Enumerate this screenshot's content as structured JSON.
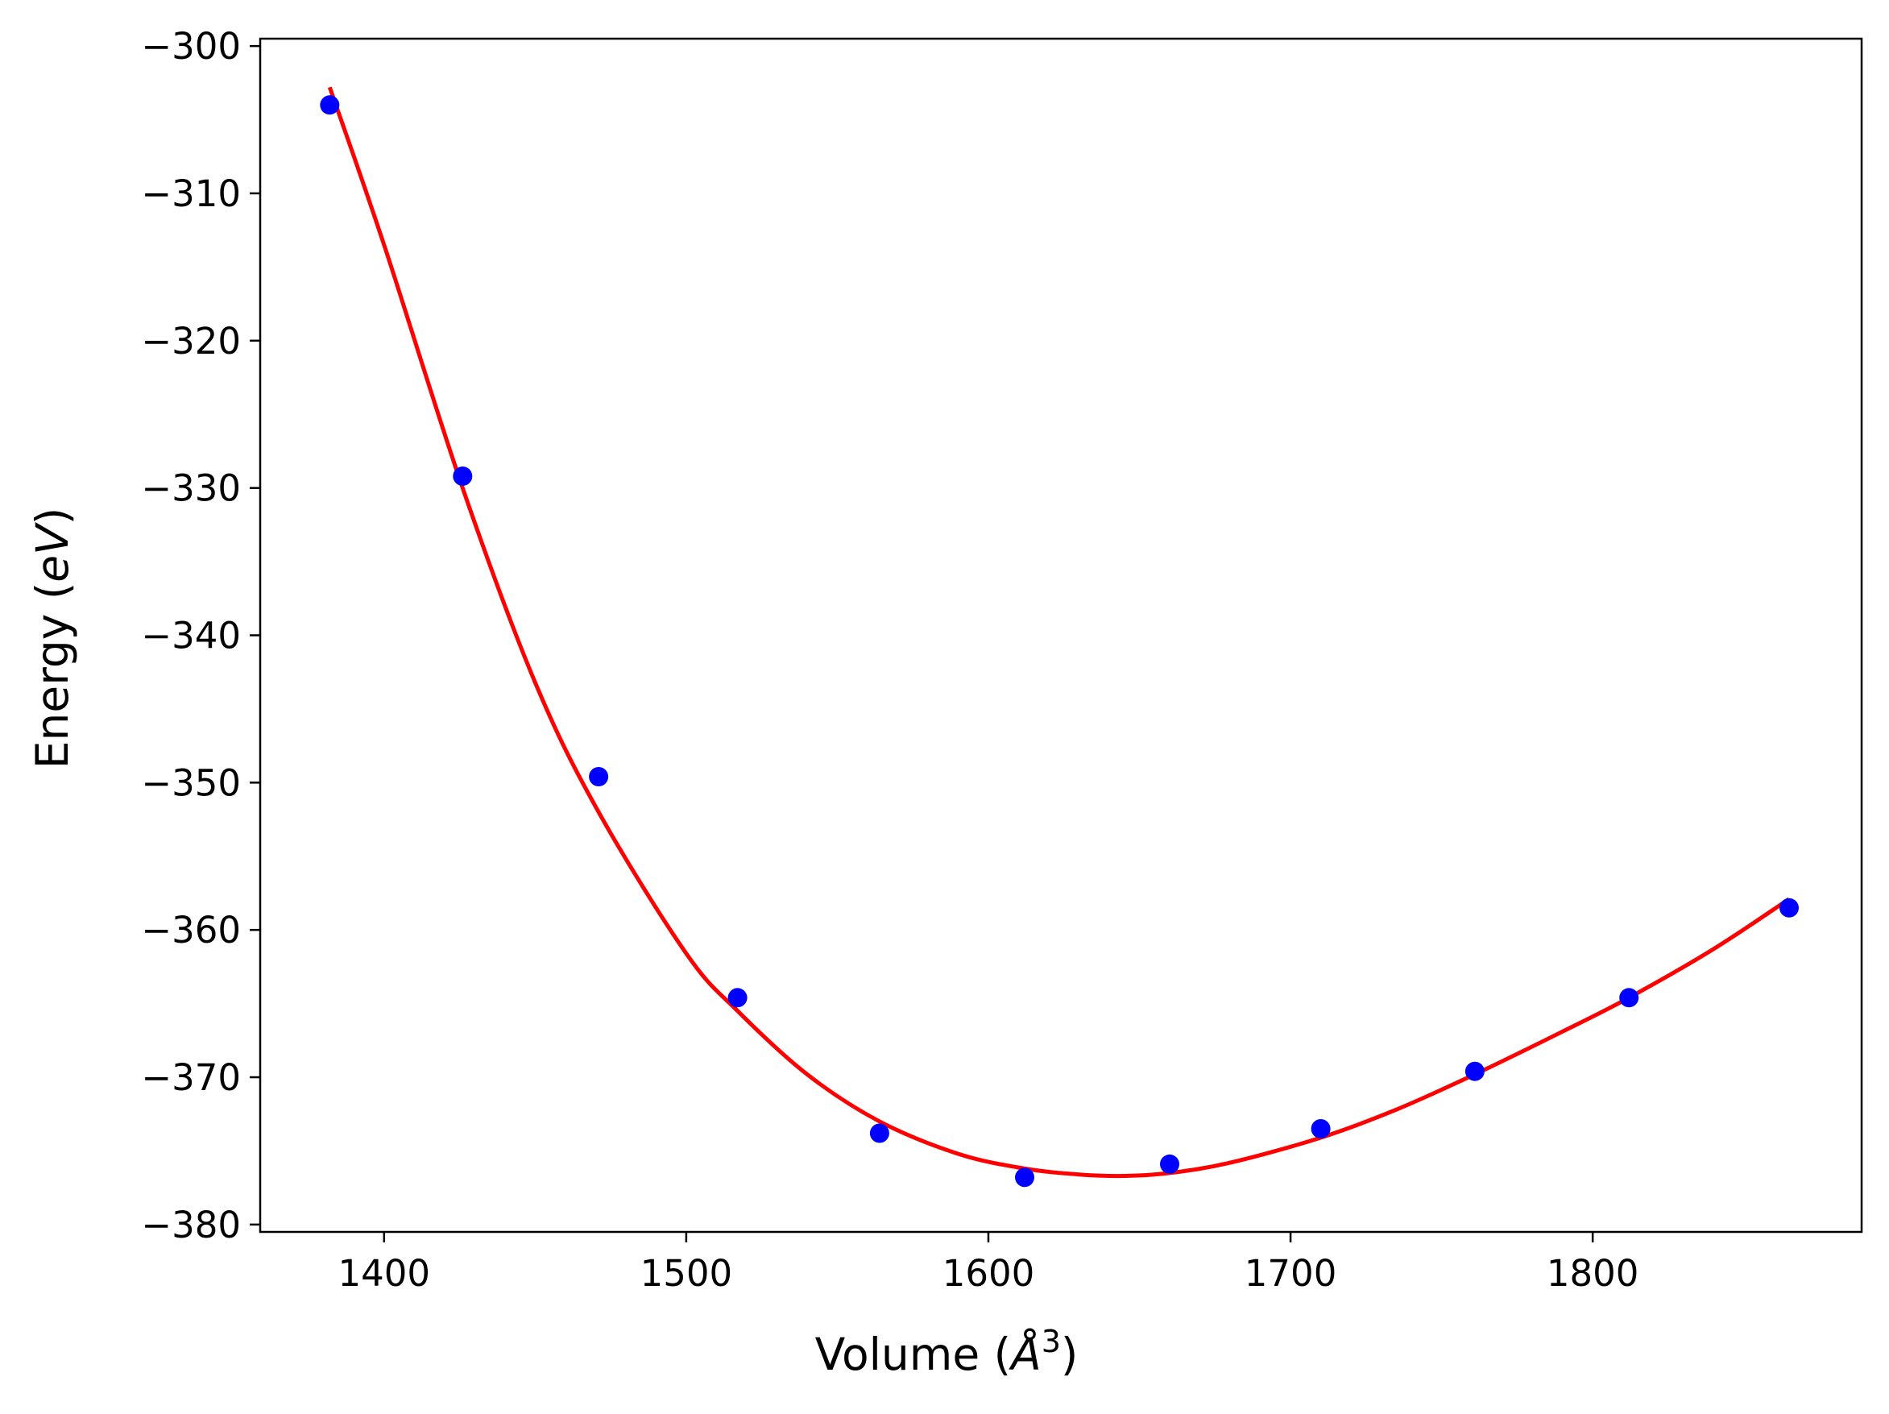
{
  "chart_data": {
    "type": "scatter",
    "title": "",
    "xlabel": "Volume (Å³)",
    "ylabel": "Energy (eV)",
    "xlabel_parts": {
      "prefix": "Volume (",
      "symbol": "Å",
      "exponent": "3",
      "suffix": ")"
    },
    "ylabel_parts": {
      "prefix": "Energy (",
      "italic": "eV",
      "suffix": ")"
    },
    "xlim": [
      1359,
      1889
    ],
    "ylim": [
      -380.5,
      -299.5
    ],
    "x_ticks": [
      1400,
      1500,
      1600,
      1700,
      1800
    ],
    "x_tick_labels": [
      "1400",
      "1500",
      "1600",
      "1700",
      "1800"
    ],
    "y_ticks": [
      -300,
      -310,
      -320,
      -330,
      -340,
      -350,
      -360,
      -370,
      -380
    ],
    "y_tick_labels": [
      "−300",
      "−310",
      "−320",
      "−330",
      "−340",
      "−350",
      "−360",
      "−370",
      "−380"
    ],
    "grid": false,
    "series": [
      {
        "kind": "points",
        "color": "#0000ff",
        "x": [
          1382,
          1426,
          1471,
          1517,
          1564,
          1612,
          1660,
          1710,
          1761,
          1812,
          1865
        ],
        "y": [
          -304.0,
          -329.2,
          -349.6,
          -364.6,
          -373.8,
          -376.8,
          -375.9,
          -373.5,
          -369.6,
          -364.6,
          -358.5
        ]
      },
      {
        "kind": "fit-line",
        "color": "#ff0000",
        "x": [
          1382,
          1400,
          1426,
          1450,
          1471,
          1500,
          1517,
          1540,
          1564,
          1590,
          1612,
          1630,
          1645,
          1660,
          1680,
          1710,
          1735,
          1761,
          1790,
          1812,
          1840,
          1865
        ],
        "y": [
          -302.8,
          -313.5,
          -330.0,
          -343.2,
          -352.0,
          -361.6,
          -365.5,
          -369.8,
          -373.0,
          -375.2,
          -376.2,
          -376.6,
          -376.7,
          -376.5,
          -375.8,
          -374.1,
          -372.2,
          -369.8,
          -366.9,
          -364.6,
          -361.3,
          -357.9
        ]
      }
    ]
  }
}
